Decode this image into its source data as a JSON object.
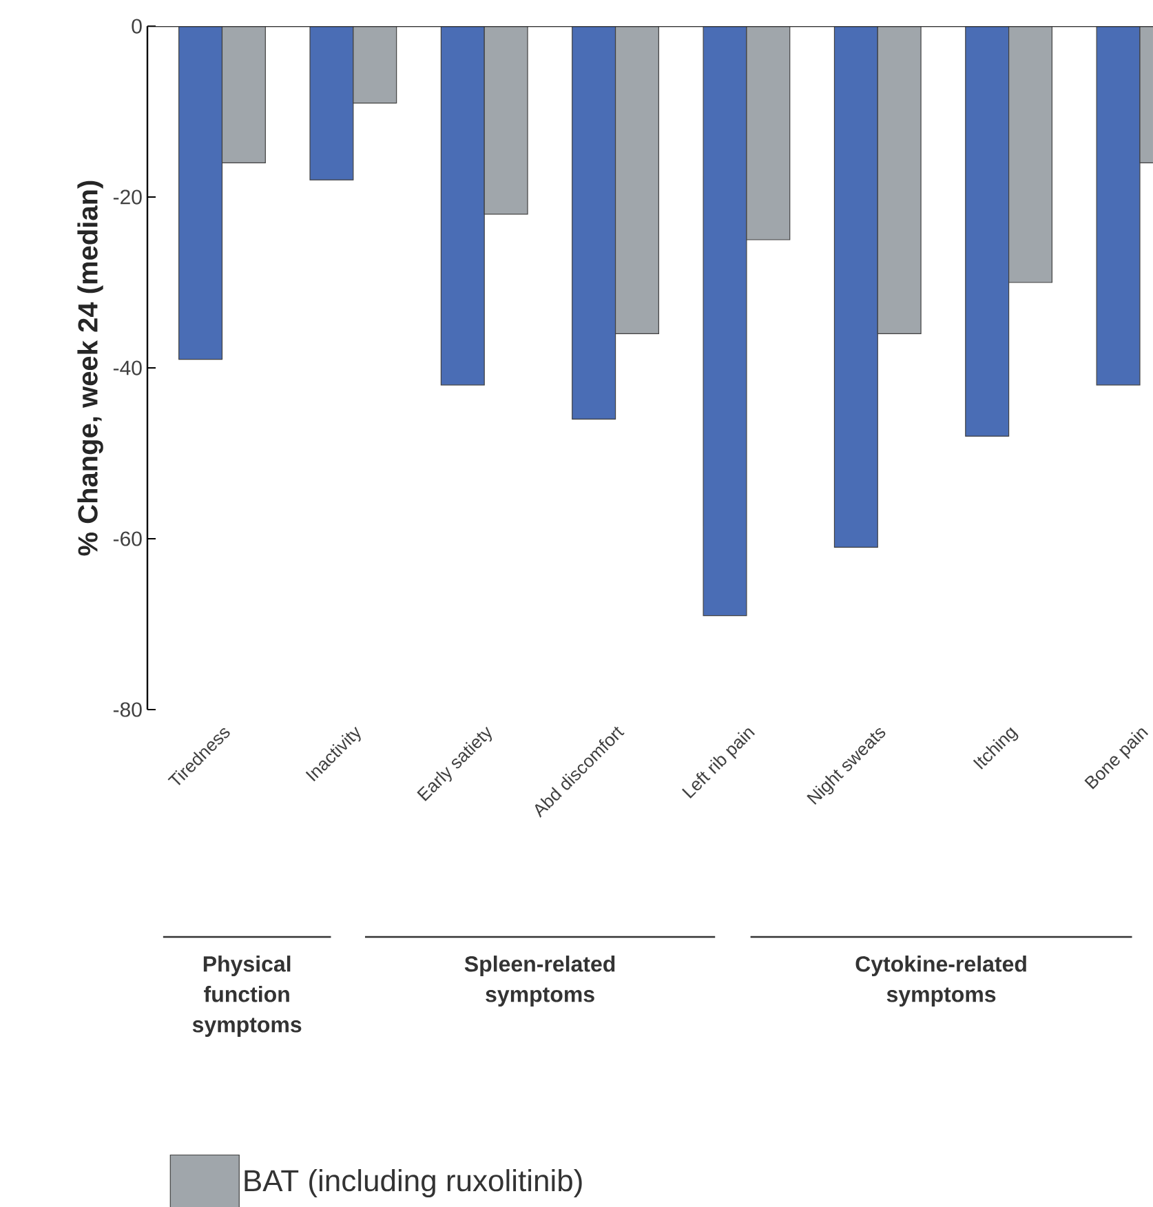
{
  "chart_data": {
    "type": "bar",
    "ylabel": "% Change, week 24 (median)",
    "categories": [
      "Tiredness",
      "Inactivity",
      "Early satiety",
      "Abd discomfort",
      "Left rib pain",
      "Night sweats",
      "Itching",
      "Bone pain"
    ],
    "series": [
      {
        "color": "#4a6db5",
        "values": [
          -39,
          -18,
          -42,
          -46,
          -69,
          -61,
          -48,
          -42
        ]
      },
      {
        "name": "BAT (including ruxolitinib)",
        "color": "#a0a6ab",
        "values": [
          -16,
          -9,
          -22,
          -36,
          -25,
          -36,
          -30,
          -16
        ]
      }
    ],
    "ylim": [
      -80,
      0
    ],
    "yticks": [
      -80,
      -60,
      -40,
      -20,
      0
    ],
    "legend": "bottom",
    "annotations": [
      "Physical function symptoms",
      "Spleen-related symptoms",
      "Cytokine-related symptoms"
    ]
  }
}
